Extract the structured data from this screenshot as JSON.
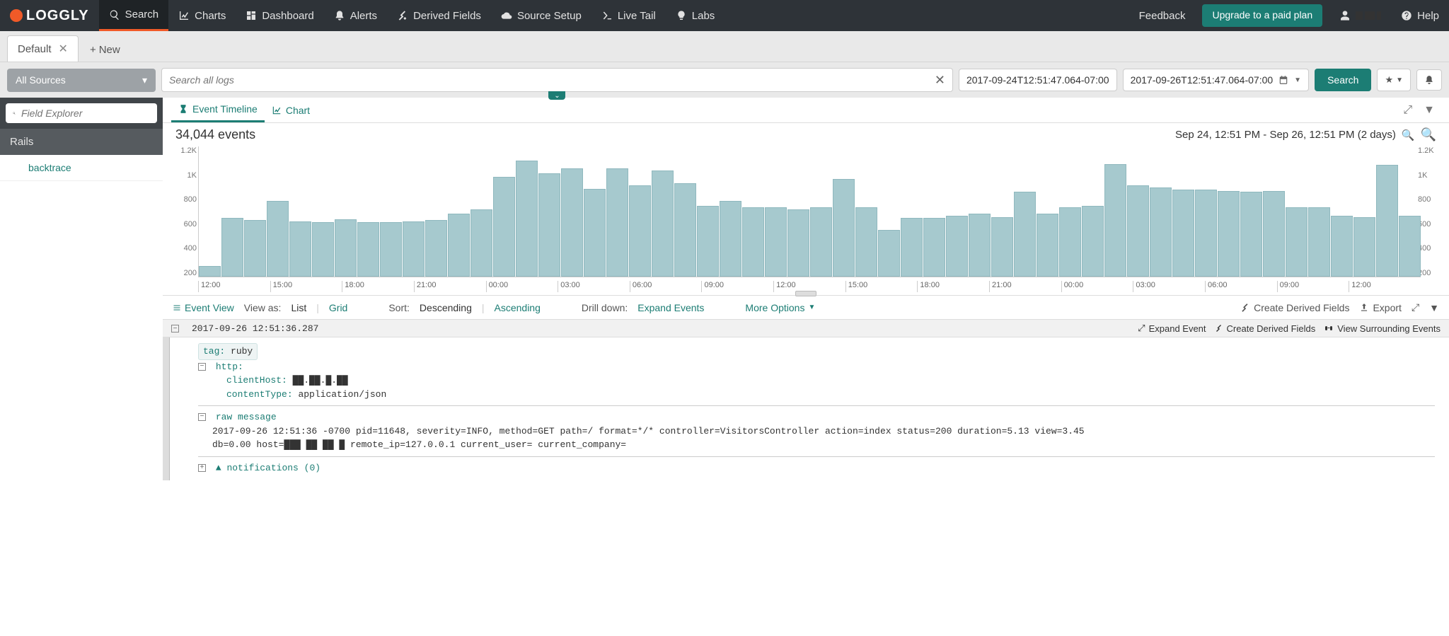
{
  "brand": "LOGGLY",
  "nav": {
    "items": [
      {
        "label": "Search",
        "icon": "search"
      },
      {
        "label": "Charts",
        "icon": "chart"
      },
      {
        "label": "Dashboard",
        "icon": "dashboard"
      },
      {
        "label": "Alerts",
        "icon": "bell"
      },
      {
        "label": "Derived Fields",
        "icon": "derived"
      },
      {
        "label": "Source Setup",
        "icon": "cloud"
      },
      {
        "label": "Live Tail",
        "icon": "terminal"
      },
      {
        "label": "Labs",
        "icon": "bulb"
      }
    ],
    "feedback": "Feedback",
    "upgrade": "Upgrade to a paid plan",
    "help": "Help"
  },
  "tabs": {
    "default": "Default",
    "new": "New"
  },
  "search": {
    "sources": "All Sources",
    "placeholder": "Search all logs",
    "from": "2017-09-24T12:51:47.064-07:00",
    "to": "2017-09-26T12:51:47.064-07:00",
    "button": "Search"
  },
  "sidebar": {
    "field_placeholder": "Field Explorer",
    "section": "Rails",
    "item": "backtrace"
  },
  "timeline": {
    "tabs": {
      "event": "Event Timeline",
      "chart": "Chart"
    },
    "count": "34,044 events",
    "range": "Sep 24, 12:51 PM - Sep 26, 12:51 PM  (2 days)"
  },
  "chart": {
    "type": "bar",
    "ymax": 1200,
    "yticks": [
      "1.2K",
      "1K",
      "800",
      "600",
      "400",
      "200"
    ],
    "bar_color": "#a6c9ce",
    "bar_border": "#8fb8be",
    "values": [
      100,
      540,
      520,
      700,
      510,
      500,
      530,
      500,
      500,
      510,
      520,
      580,
      620,
      920,
      1070,
      950,
      1000,
      810,
      1000,
      840,
      980,
      860,
      650,
      700,
      640,
      640,
      620,
      640,
      900,
      640,
      430,
      540,
      540,
      560,
      580,
      550,
      780,
      580,
      640,
      650,
      1040,
      840,
      820,
      800,
      800,
      790,
      780,
      790,
      640,
      640,
      560,
      550,
      1030,
      560
    ],
    "xticks": [
      "12:00",
      "15:00",
      "18:00",
      "21:00",
      "00:00",
      "03:00",
      "06:00",
      "09:00",
      "12:00",
      "15:00",
      "18:00",
      "21:00",
      "00:00",
      "03:00",
      "06:00",
      "09:00",
      "12:00"
    ]
  },
  "viewbar": {
    "event_view": "Event View",
    "view_as": "View as:",
    "list": "List",
    "grid": "Grid",
    "sort": "Sort:",
    "desc": "Descending",
    "asc": "Ascending",
    "drill": "Drill down:",
    "expand": "Expand Events",
    "more": "More Options",
    "derived": "Create Derived Fields",
    "export": "Export"
  },
  "event": {
    "timestamp": "2017-09-26 12:51:36.287",
    "expand": "Expand Event",
    "create_derived": "Create Derived Fields",
    "surrounding": "View Surrounding Events",
    "tag_key": "tag:",
    "tag_val": "ruby",
    "http": "http:",
    "clientHost_key": "clientHost:",
    "clientHost_val": "██.██.█.██",
    "contentType_key": "contentType:",
    "contentType_val": "application/json",
    "raw_label": "raw message",
    "raw_line1": "2017-09-26 12:51:36 -0700 pid=11648, severity=INFO, method=GET path=/ format=*/* controller=VisitorsController action=index status=200 duration=5.13 view=3.45",
    "raw_line2": "db=0.00 host=███ ██ ██ █ remote_ip=127.0.0.1 current_user= current_company=",
    "notifications": "notifications (0)"
  },
  "colors": {
    "teal": "#1c7d74",
    "orange": "#f05a28",
    "nav_bg": "#2e3338",
    "bar": "#a6c9ce"
  }
}
